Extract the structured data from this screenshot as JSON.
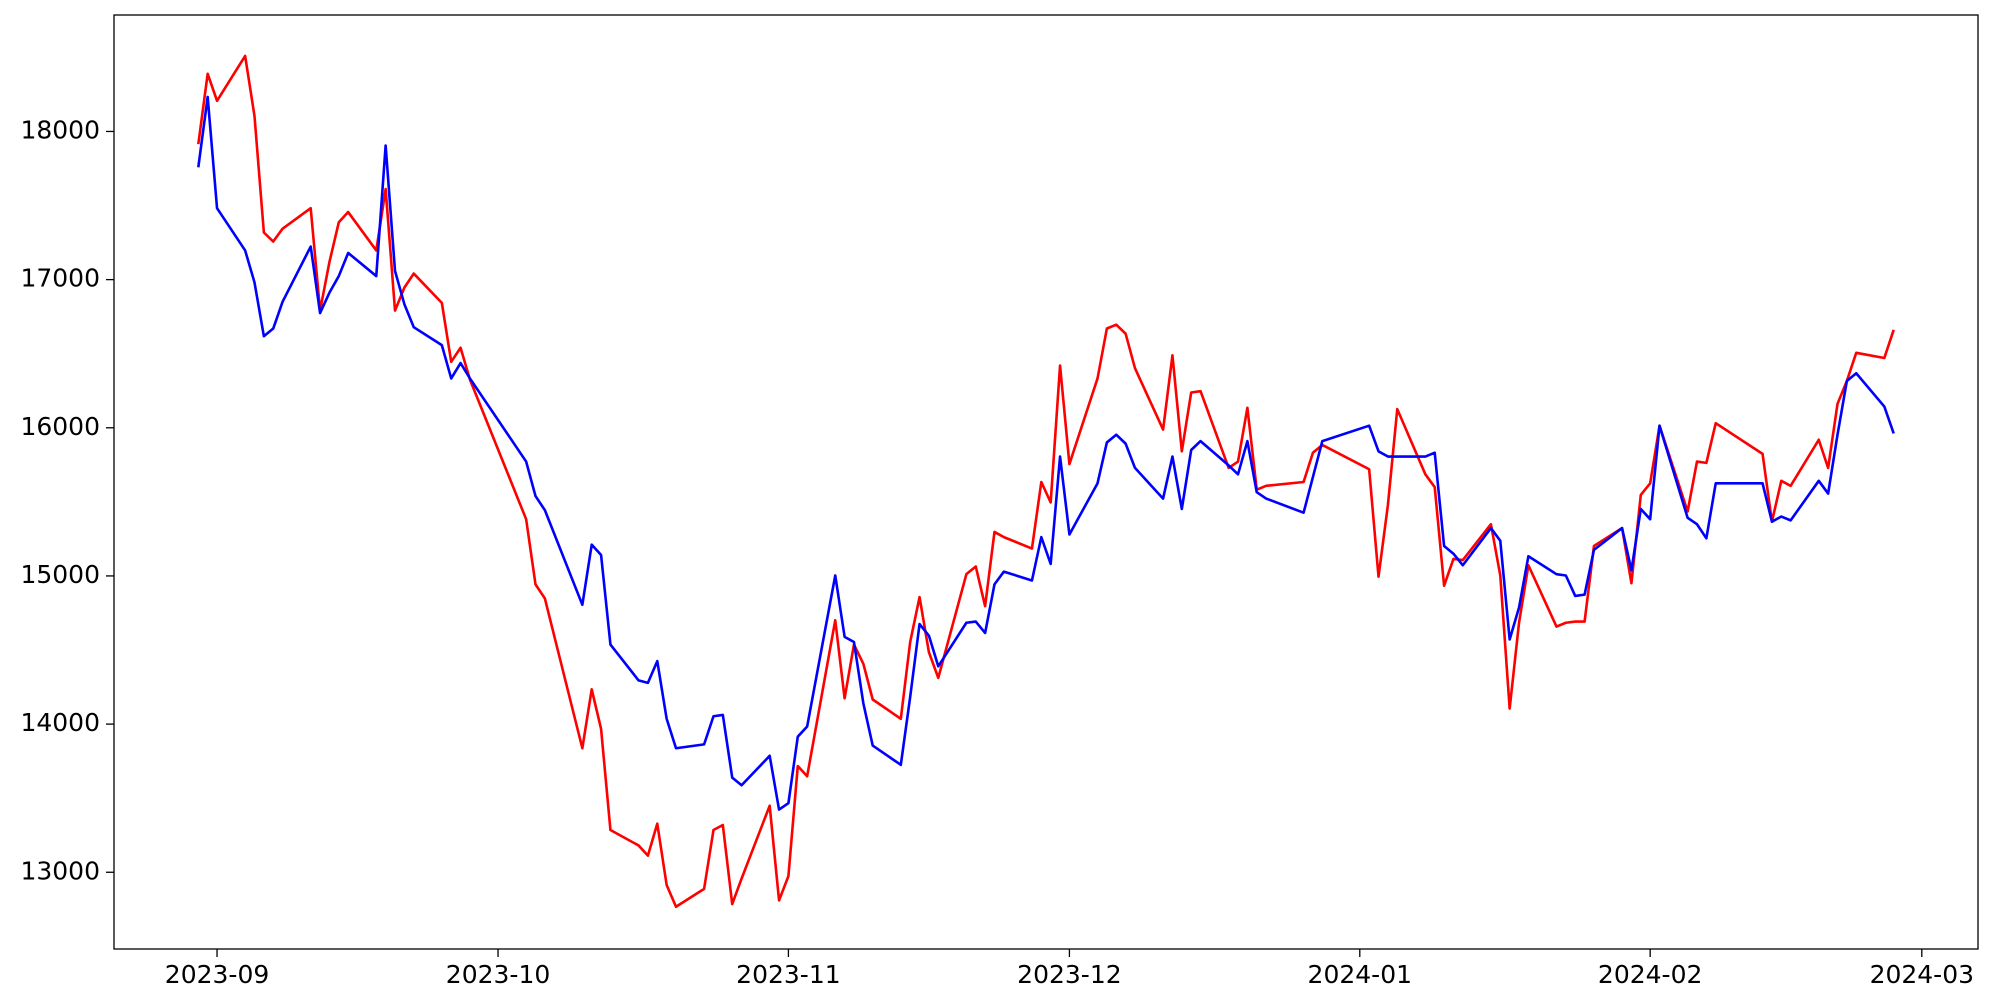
{
  "chart_data": {
    "type": "line",
    "x": [
      "2023-08-30",
      "2023-08-31",
      "2023-09-01",
      "2023-09-04",
      "2023-09-05",
      "2023-09-06",
      "2023-09-07",
      "2023-09-08",
      "2023-09-11",
      "2023-09-12",
      "2023-09-13",
      "2023-09-14",
      "2023-09-15",
      "2023-09-18",
      "2023-09-19",
      "2023-09-20",
      "2023-09-21",
      "2023-09-22",
      "2023-09-25",
      "2023-09-26",
      "2023-09-27",
      "2023-09-28",
      "2023-10-04",
      "2023-10-05",
      "2023-10-06",
      "2023-10-10",
      "2023-10-11",
      "2023-10-12",
      "2023-10-13",
      "2023-10-16",
      "2023-10-17",
      "2023-10-18",
      "2023-10-19",
      "2023-10-20",
      "2023-10-23",
      "2023-10-24",
      "2023-10-25",
      "2023-10-26",
      "2023-10-27",
      "2023-10-30",
      "2023-10-31",
      "2023-11-01",
      "2023-11-02",
      "2023-11-03",
      "2023-11-06",
      "2023-11-07",
      "2023-11-08",
      "2023-11-09",
      "2023-11-10",
      "2023-11-13",
      "2023-11-14",
      "2023-11-15",
      "2023-11-16",
      "2023-11-17",
      "2023-11-20",
      "2023-11-21",
      "2023-11-22",
      "2023-11-23",
      "2023-11-24",
      "2023-11-27",
      "2023-11-28",
      "2023-11-29",
      "2023-11-30",
      "2023-12-01",
      "2023-12-04",
      "2023-12-05",
      "2023-12-06",
      "2023-12-07",
      "2023-12-08",
      "2023-12-11",
      "2023-12-12",
      "2023-12-13",
      "2023-12-14",
      "2023-12-15",
      "2023-12-18",
      "2023-12-19",
      "2023-12-20",
      "2023-12-21",
      "2023-12-22",
      "2023-12-26",
      "2023-12-27",
      "2023-12-28",
      "2024-01-02",
      "2024-01-03",
      "2024-01-04",
      "2024-01-05",
      "2024-01-08",
      "2024-01-09",
      "2024-01-10",
      "2024-01-11",
      "2024-01-12",
      "2024-01-15",
      "2024-01-16",
      "2024-01-17",
      "2024-01-18",
      "2024-01-19",
      "2024-01-22",
      "2024-01-23",
      "2024-01-24",
      "2024-01-25",
      "2024-01-26",
      "2024-01-29",
      "2024-01-30",
      "2024-01-31",
      "2024-02-01",
      "2024-02-02",
      "2024-02-05",
      "2024-02-06",
      "2024-02-07",
      "2024-02-08",
      "2024-02-13",
      "2024-02-14",
      "2024-02-15",
      "2024-02-16",
      "2024-02-19",
      "2024-02-20",
      "2024-02-21",
      "2024-02-22",
      "2024-02-23",
      "2024-02-26",
      "2024-02-27"
    ],
    "series": [
      {
        "color": "#ff0000",
        "values": [
          17914,
          18389,
          18207,
          18510,
          18104,
          17318,
          17257,
          17344,
          17482,
          16791,
          17119,
          17387,
          17456,
          17197,
          17611,
          16791,
          16946,
          17041,
          16843,
          16445,
          16540,
          16325,
          15383,
          14943,
          14848,
          13837,
          14235,
          13967,
          13285,
          13181,
          13112,
          13328,
          12914,
          12767,
          12888,
          13285,
          13319,
          12785,
          12957,
          13449,
          12810,
          12974,
          13717,
          13648,
          14701,
          14174,
          14537,
          14407,
          14166,
          14036,
          14554,
          14857,
          14485,
          14312,
          15012,
          15064,
          14796,
          15297,
          15262,
          15185,
          15634,
          15496,
          16420,
          15755,
          16333,
          16670,
          16696,
          16635,
          16402,
          15988,
          16489,
          15841,
          16238,
          16247,
          15729,
          15772,
          16135,
          15582,
          15608,
          15634,
          15832,
          15884,
          15720,
          14995,
          15478,
          16126,
          15686,
          15599,
          14934,
          15115,
          15107,
          15349,
          15003,
          14105,
          14684,
          15072,
          14658,
          14684,
          14692,
          14692,
          15202,
          15323,
          14951,
          15547,
          15625,
          16014,
          15435,
          15772,
          15763,
          16031,
          15824,
          15366,
          15642,
          15608,
          15919,
          15729,
          16161,
          16316,
          16506,
          16471,
          16661
        ]
      },
      {
        "color": "#0000ff",
        "values": [
          17758,
          18233,
          17482,
          17197,
          16981,
          16618,
          16670,
          16851,
          17223,
          16774,
          16912,
          17024,
          17180,
          17024,
          17905,
          17059,
          16834,
          16679,
          16558,
          16333,
          16437,
          16333,
          15772,
          15539,
          15444,
          14805,
          15211,
          15141,
          14537,
          14295,
          14278,
          14425,
          14036,
          13837,
          13863,
          14053,
          14062,
          13639,
          13587,
          13786,
          13423,
          13466,
          13915,
          13984,
          15003,
          14589,
          14554,
          14140,
          13855,
          13725,
          14183,
          14675,
          14597,
          14390,
          14684,
          14692,
          14615,
          14943,
          15029,
          14969,
          15262,
          15081,
          15806,
          15280,
          15625,
          15901,
          15953,
          15893,
          15729,
          15522,
          15806,
          15452,
          15850,
          15910,
          15746,
          15686,
          15910,
          15565,
          15522,
          15427,
          15668,
          15910,
          16014,
          15841,
          15806,
          15806,
          15806,
          15832,
          15202,
          15150,
          15072,
          15323,
          15237,
          14571,
          14787,
          15133,
          15012,
          15003,
          14865,
          14874,
          15176,
          15323,
          15038,
          15452,
          15383,
          16014,
          15392,
          15349,
          15254,
          15625,
          15625,
          15366,
          15401,
          15375,
          15642,
          15556,
          15953,
          16316,
          16368,
          16143,
          15962
        ]
      }
    ],
    "xlim": [
      "2023-08-21",
      "2024-03-07"
    ],
    "xticks": [
      {
        "value": "2023-09-01",
        "label": "2023-09"
      },
      {
        "value": "2023-10-01",
        "label": "2023-10"
      },
      {
        "value": "2023-11-01",
        "label": "2023-11"
      },
      {
        "value": "2023-12-01",
        "label": "2023-12"
      },
      {
        "value": "2024-01-01",
        "label": "2024-01"
      },
      {
        "value": "2024-02-01",
        "label": "2024-02"
      },
      {
        "value": "2024-03-01",
        "label": "2024-03"
      }
    ],
    "ylim": [
      12482,
      18786
    ],
    "yticks": [
      13000,
      14000,
      15000,
      16000,
      17000,
      18000
    ],
    "grid": false
  }
}
